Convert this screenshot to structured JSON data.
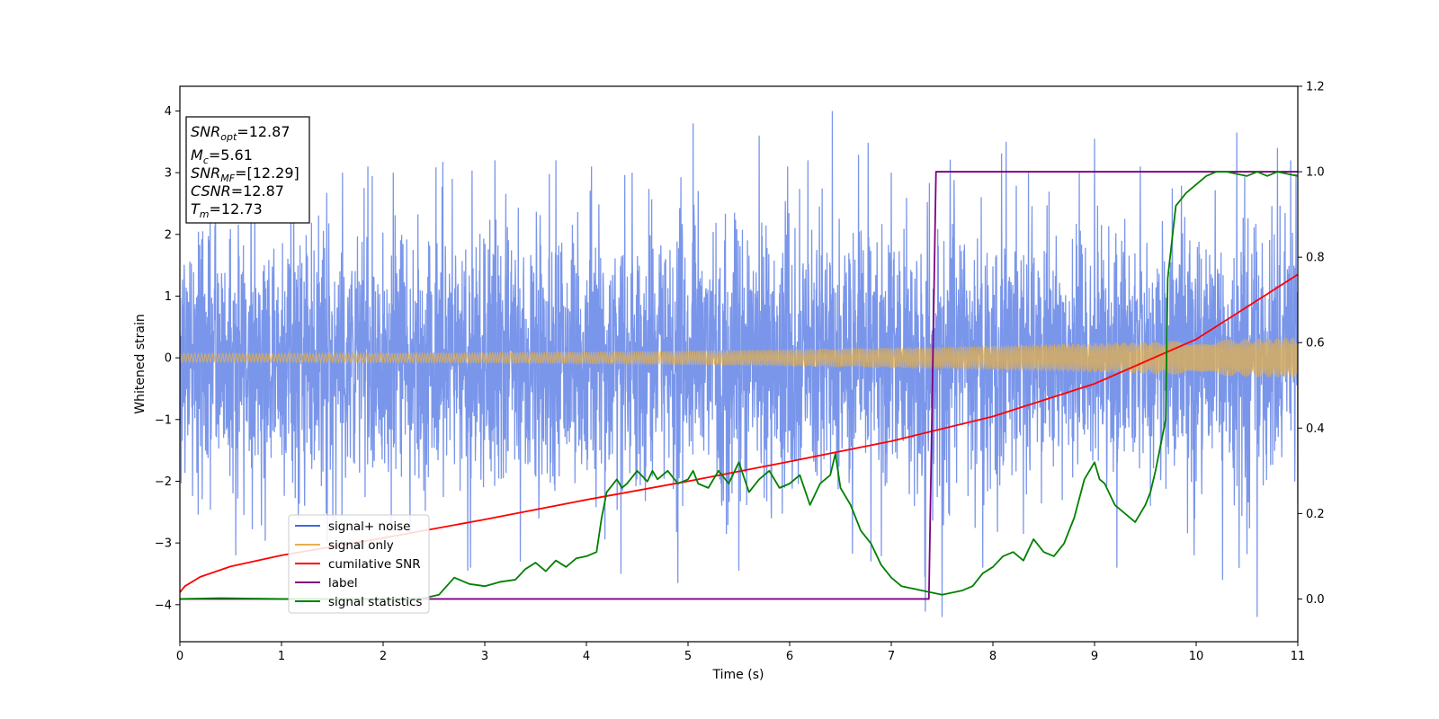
{
  "chart_data": {
    "type": "line",
    "xlabel": "Time (s)",
    "ylabel": "Whitened strain",
    "xlim": [
      0,
      11
    ],
    "ylim": [
      -4.6,
      4.4
    ],
    "ylim_right": [
      -0.1,
      1.2
    ],
    "x_ticks": [
      0,
      1,
      2,
      3,
      4,
      5,
      6,
      7,
      8,
      9,
      10,
      11
    ],
    "x_tick_labels": [
      "0",
      "1",
      "2",
      "3",
      "4",
      "5",
      "6",
      "7",
      "8",
      "9",
      "10",
      "11"
    ],
    "y_ticks": [
      -4,
      -3,
      -2,
      -1,
      0,
      1,
      2,
      3,
      4
    ],
    "y_tick_labels": [
      "−4",
      "−3",
      "−2",
      "−1",
      "0",
      "1",
      "2",
      "3",
      "4"
    ],
    "y_right_ticks": [
      0.0,
      0.2,
      0.4,
      0.6,
      0.8,
      1.0,
      1.2
    ],
    "y_right_tick_labels": [
      "0.0",
      "0.2",
      "0.4",
      "0.6",
      "0.8",
      "1.0",
      "1.2"
    ],
    "grid": false,
    "legend_position": "lower-left",
    "annotation": {
      "lines": [
        {
          "base": "SNR",
          "sub": "opt",
          "value": "=12.87"
        },
        {
          "base": "M",
          "sub": "c",
          "value": "=5.61"
        },
        {
          "base": "SNR",
          "sub": "MF",
          "value": "=[12.29]"
        },
        {
          "base": "CSNR",
          "sub": "",
          "value": "=12.87"
        },
        {
          "base": "T",
          "sub": "m",
          "value": "=12.73"
        }
      ]
    },
    "series": [
      {
        "name": "signal+ noise",
        "axis": "left",
        "color": "#4169e1",
        "kind": "noisy",
        "std": 1.05,
        "spikes": [
          {
            "x": 0.35,
            "y": 3.3
          },
          {
            "x": 0.55,
            "y": -3.2
          },
          {
            "x": 1.12,
            "y": 2.9
          },
          {
            "x": 1.45,
            "y": -3.0
          },
          {
            "x": 1.6,
            "y": 3.0
          },
          {
            "x": 1.85,
            "y": 3.1
          },
          {
            "x": 2.1,
            "y": 3.0
          },
          {
            "x": 2.68,
            "y": 2.9
          },
          {
            "x": 2.86,
            "y": -3.4
          },
          {
            "x": 3.1,
            "y": 3.2
          },
          {
            "x": 3.35,
            "y": -3.3
          },
          {
            "x": 3.7,
            "y": 3.2
          },
          {
            "x": 4.05,
            "y": 3.1
          },
          {
            "x": 4.34,
            "y": -3.5
          },
          {
            "x": 4.45,
            "y": 3.0
          },
          {
            "x": 4.9,
            "y": -3.65
          },
          {
            "x": 5.05,
            "y": 3.8
          },
          {
            "x": 5.5,
            "y": -3.45
          },
          {
            "x": 5.7,
            "y": 3.6
          },
          {
            "x": 5.98,
            "y": 3.1
          },
          {
            "x": 6.18,
            "y": 3.2
          },
          {
            "x": 6.42,
            "y": 4.0
          },
          {
            "x": 6.8,
            "y": -3.3
          },
          {
            "x": 7.0,
            "y": 3.0
          },
          {
            "x": 7.33,
            "y": -3.55
          },
          {
            "x": 7.9,
            "y": -3.4
          },
          {
            "x": 8.13,
            "y": 3.5
          },
          {
            "x": 8.35,
            "y": 3.0
          },
          {
            "x": 8.85,
            "y": 3.0
          },
          {
            "x": 9.0,
            "y": 3.55
          },
          {
            "x": 9.22,
            "y": -3.4
          },
          {
            "x": 9.45,
            "y": 3.1
          },
          {
            "x": 9.98,
            "y": -3.2
          },
          {
            "x": 10.26,
            "y": -3.6
          },
          {
            "x": 10.4,
            "y": 3.65
          },
          {
            "x": 10.6,
            "y": -4.2
          },
          {
            "x": 10.8,
            "y": 3.4
          },
          {
            "x": 10.93,
            "y": 3.2
          }
        ]
      },
      {
        "name": "signal only",
        "axis": "left",
        "color": "#e6b04c",
        "kind": "chirp",
        "amp_start": 0.07,
        "amp_end": 0.33,
        "freq_start": 28,
        "freq_end": 72
      },
      {
        "name": "cumilative SNR",
        "axis": "left",
        "color": "#ff0000",
        "kind": "line",
        "x": [
          0,
          0.05,
          0.2,
          0.5,
          1,
          2,
          3,
          4,
          5,
          6,
          7,
          8,
          9,
          10,
          11
        ],
        "y": [
          -3.8,
          -3.7,
          -3.55,
          -3.38,
          -3.2,
          -2.92,
          -2.62,
          -2.3,
          -2.0,
          -1.68,
          -1.35,
          -0.95,
          -0.42,
          0.3,
          1.35
        ]
      },
      {
        "name": "label",
        "axis": "right",
        "color": "#800080",
        "kind": "line",
        "x": [
          0,
          7.37,
          7.44,
          11
        ],
        "y": [
          0.0,
          0.0,
          1.0,
          1.0
        ]
      },
      {
        "name": "signal statistics",
        "axis": "right",
        "color": "#008000",
        "kind": "line",
        "x": [
          0,
          0.4,
          1,
          1.5,
          2,
          2.4,
          2.55,
          2.7,
          2.85,
          3.0,
          3.15,
          3.3,
          3.4,
          3.5,
          3.6,
          3.7,
          3.8,
          3.9,
          4.0,
          4.1,
          4.15,
          4.2,
          4.3,
          4.35,
          4.4,
          4.5,
          4.6,
          4.65,
          4.7,
          4.8,
          4.9,
          5.0,
          5.05,
          5.1,
          5.2,
          5.3,
          5.4,
          5.5,
          5.6,
          5.7,
          5.8,
          5.9,
          6.0,
          6.1,
          6.2,
          6.3,
          6.4,
          6.45,
          6.5,
          6.6,
          6.7,
          6.8,
          6.9,
          7.0,
          7.1,
          7.2,
          7.3,
          7.4,
          7.5,
          7.6,
          7.7,
          7.8,
          7.9,
          8.0,
          8.1,
          8.2,
          8.3,
          8.4,
          8.5,
          8.6,
          8.7,
          8.8,
          8.9,
          9.0,
          9.05,
          9.1,
          9.2,
          9.3,
          9.4,
          9.5,
          9.55,
          9.6,
          9.7,
          9.72,
          9.8,
          9.9,
          10.0,
          10.1,
          10.2,
          10.3,
          10.4,
          10.5,
          10.6,
          10.7,
          10.8,
          10.9,
          11.0
        ],
        "y": [
          0.0,
          0.002,
          0.0,
          0.0,
          0.0,
          0.002,
          0.01,
          0.05,
          0.035,
          0.03,
          0.04,
          0.045,
          0.07,
          0.085,
          0.065,
          0.09,
          0.075,
          0.095,
          0.1,
          0.11,
          0.19,
          0.25,
          0.28,
          0.26,
          0.27,
          0.3,
          0.275,
          0.3,
          0.28,
          0.3,
          0.27,
          0.28,
          0.3,
          0.27,
          0.26,
          0.3,
          0.27,
          0.32,
          0.25,
          0.28,
          0.3,
          0.26,
          0.27,
          0.29,
          0.22,
          0.27,
          0.29,
          0.34,
          0.26,
          0.22,
          0.16,
          0.13,
          0.08,
          0.05,
          0.03,
          0.025,
          0.02,
          0.015,
          0.01,
          0.015,
          0.02,
          0.03,
          0.06,
          0.075,
          0.1,
          0.11,
          0.09,
          0.14,
          0.11,
          0.1,
          0.13,
          0.19,
          0.28,
          0.32,
          0.28,
          0.27,
          0.22,
          0.2,
          0.18,
          0.22,
          0.25,
          0.3,
          0.42,
          0.75,
          0.92,
          0.95,
          0.97,
          0.99,
          1.0,
          1.0,
          0.995,
          0.99,
          1.0,
          0.99,
          1.0,
          0.995,
          0.99
        ]
      }
    ]
  }
}
